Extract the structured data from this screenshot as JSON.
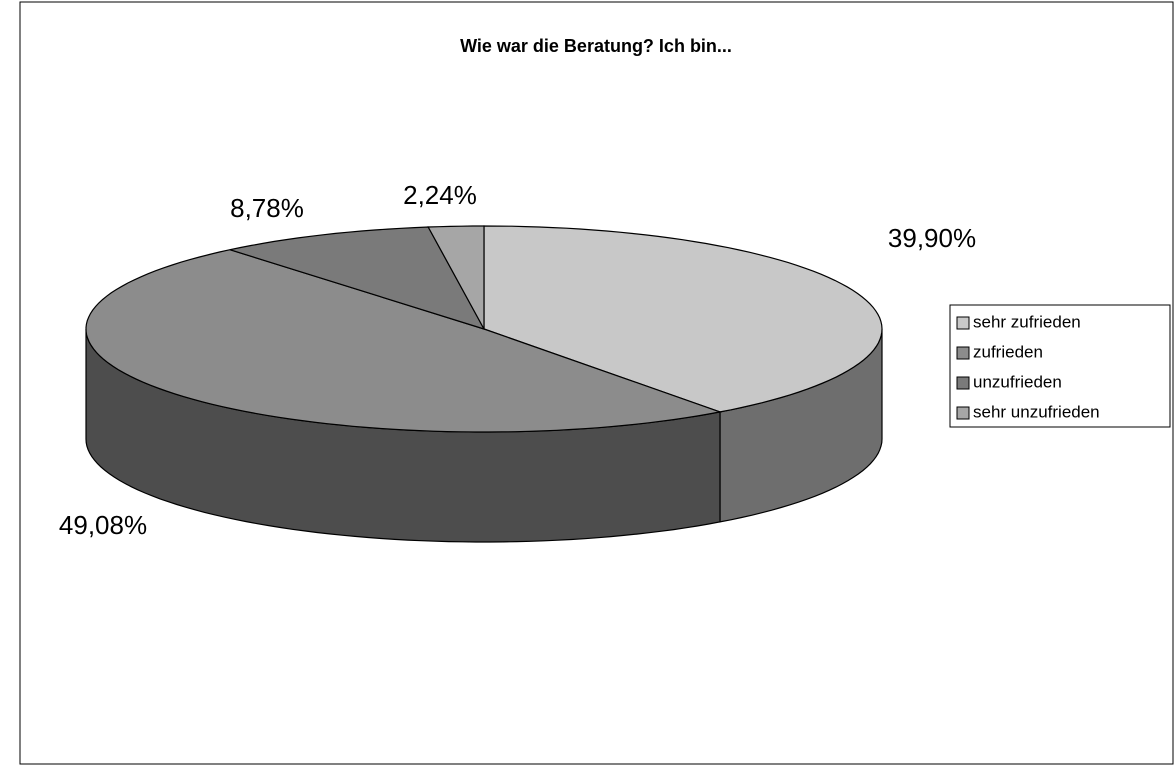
{
  "chart_data": {
    "type": "pie3d",
    "title": "Wie war die Beratung? Ich bin...",
    "categories": [
      "sehr zufrieden",
      "zufrieden",
      "unzufrieden",
      "sehr unzufrieden"
    ],
    "values": [
      39.9,
      49.08,
      8.78,
      2.24
    ],
    "value_labels": [
      "39,90%",
      "49,08%",
      "8,78%",
      "2,24%"
    ],
    "colors": [
      "#c8c8c8",
      "#8c8c8c",
      "#7a7a7a",
      "#a6a6a6"
    ],
    "legend": "right"
  }
}
